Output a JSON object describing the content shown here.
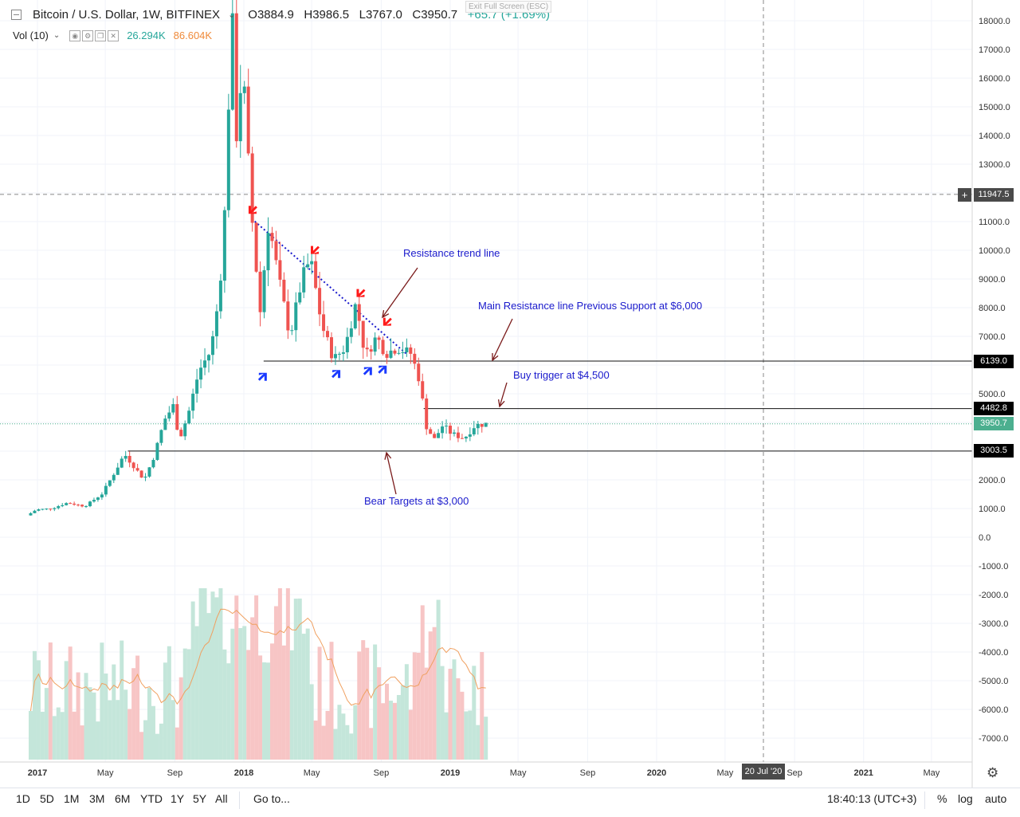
{
  "header": {
    "symbol": "Bitcoin / U.S. Dollar, 1W, BITFINEX",
    "open_label": "O",
    "open": "3884.9",
    "high_label": "H",
    "high": "3986.5",
    "low_label": "L",
    "low": "3767.0",
    "close_label": "C",
    "close": "3950.7",
    "change": "+65.7 (+1.69%)",
    "vol_label": "Vol (10)",
    "vol_value": "26.294K",
    "vol_ma_value": "86.604K",
    "exit_fullscreen": "Exit Full Screen (ESC)"
  },
  "annotations": {
    "resistance_trend": "Resistance trend line",
    "main_resistance": "Main Resistance line Previous Support at $6,000",
    "buy_trigger": "Buy trigger at $4,500",
    "bear_targets": "Bear Targets at $3,000"
  },
  "price_labels": {
    "crosshair": "11947.5",
    "line_6139": "6139.0",
    "line_4482": "4482.8",
    "last": "3950.7",
    "line_3003": "3003.5"
  },
  "time_cursor": "20 Jul '20",
  "bottom": {
    "ranges": [
      "1D",
      "5D",
      "1M",
      "3M",
      "6M",
      "YTD",
      "1Y",
      "5Y",
      "All"
    ],
    "goto": "Go to...",
    "clock": "18:40:13 (UTC+3)",
    "percent": "%",
    "log": "log",
    "auto": "auto"
  },
  "colors": {
    "up": "#26a69a",
    "down": "#ef5350",
    "up_vol": "#c4e6da",
    "down_vol": "#f7c5c5",
    "ma": "#f0a060",
    "annot": "#1a1acc"
  },
  "chart_data": {
    "type": "candlestick",
    "y_ticks": [
      18000,
      17000,
      16000,
      15000,
      14000,
      13000,
      12000,
      11000,
      10000,
      9000,
      8000,
      7000,
      6000,
      5000,
      4000,
      3000,
      2000,
      1000,
      0,
      -1000,
      -2000,
      -3000,
      -4000,
      -5000,
      -6000,
      -7000
    ],
    "x_ticks": [
      "2017",
      "May",
      "Sep",
      "2018",
      "May",
      "Sep",
      "2019",
      "May",
      "Sep",
      "2020",
      "May",
      "Sep",
      "2021",
      "May"
    ],
    "horizontal_lines": [
      11947.5,
      6139.0,
      4482.8,
      3003.5
    ],
    "last_price": 3950.7,
    "trendline": {
      "from": [
        "2018-01-15",
        11100
      ],
      "to": [
        "2018-10-15",
        6400
      ]
    },
    "price_anchors": [
      [
        "2016-12-20",
        760
      ],
      [
        "2017-01-05",
        960
      ],
      [
        "2017-02-01",
        1000
      ],
      [
        "2017-03-01",
        1200
      ],
      [
        "2017-04-01",
        1080
      ],
      [
        "2017-05-01",
        1500
      ],
      [
        "2017-05-25",
        2300
      ],
      [
        "2017-06-10",
        2900
      ],
      [
        "2017-07-15",
        2000
      ],
      [
        "2017-08-01",
        2800
      ],
      [
        "2017-08-20",
        4100
      ],
      [
        "2017-09-05",
        4600
      ],
      [
        "2017-09-15",
        3400
      ],
      [
        "2017-10-01",
        4300
      ],
      [
        "2017-10-20",
        5800
      ],
      [
        "2017-11-10",
        6500
      ],
      [
        "2017-11-25",
        8500
      ],
      [
        "2017-12-05",
        11500
      ],
      [
        "2017-12-17",
        18500
      ],
      [
        "2017-12-25",
        14000
      ],
      [
        "2018-01-05",
        16500
      ],
      [
        "2018-01-20",
        11500
      ],
      [
        "2018-02-05",
        7800
      ],
      [
        "2018-02-20",
        11000
      ],
      [
        "2018-03-10",
        9000
      ],
      [
        "2018-03-30",
        7000
      ],
      [
        "2018-04-20",
        9000
      ],
      [
        "2018-05-05",
        9700
      ],
      [
        "2018-05-25",
        7400
      ],
      [
        "2018-06-15",
        6200
      ],
      [
        "2018-07-05",
        6600
      ],
      [
        "2018-07-25",
        8200
      ],
      [
        "2018-08-10",
        6300
      ],
      [
        "2018-08-30",
        7000
      ],
      [
        "2018-09-15",
        6400
      ],
      [
        "2018-10-05",
        6600
      ],
      [
        "2018-10-30",
        6400
      ],
      [
        "2018-11-15",
        5400
      ],
      [
        "2018-11-25",
        3900
      ],
      [
        "2018-12-10",
        3400
      ],
      [
        "2018-12-25",
        3900
      ],
      [
        "2019-01-10",
        3600
      ],
      [
        "2019-02-01",
        3450
      ],
      [
        "2019-02-20",
        3900
      ],
      [
        "2019-03-10",
        3950
      ]
    ],
    "arrows": [
      {
        "type": "bear",
        "date": "2018-01-15",
        "price": 11300
      },
      {
        "type": "bear",
        "date": "2018-05-05",
        "price": 9900
      },
      {
        "type": "bear",
        "date": "2018-07-25",
        "price": 8400
      },
      {
        "type": "bear",
        "date": "2018-09-10",
        "price": 7400
      },
      {
        "type": "bull",
        "date": "2018-02-05",
        "price": 5700
      },
      {
        "type": "bull",
        "date": "2018-06-15",
        "price": 5800
      },
      {
        "type": "bull",
        "date": "2018-08-10",
        "price": 5900
      },
      {
        "type": "bull",
        "date": "2018-09-05",
        "price": 5950
      }
    ]
  }
}
